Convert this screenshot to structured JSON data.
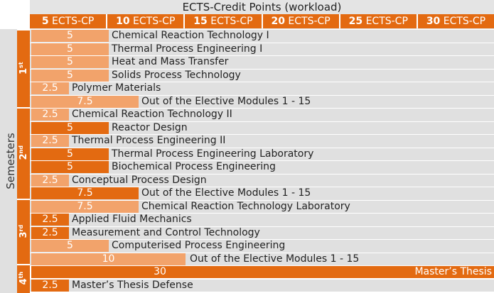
{
  "header": {
    "title": "ECTS-Credit Points (workload)",
    "columns": [
      {
        "num": "5",
        "unit": " ECTS-CP"
      },
      {
        "num": "10",
        "unit": " ECTS-CP"
      },
      {
        "num": "15",
        "unit": " ECTS-CP"
      },
      {
        "num": "20",
        "unit": " ECTS-CP"
      },
      {
        "num": "25",
        "unit": " ECTS-CP"
      },
      {
        "num": "30",
        "unit": " ECTS-CP"
      }
    ]
  },
  "axis_label": "Semesters",
  "semesters": [
    {
      "label": "1",
      "sup": "st"
    },
    {
      "label": "2",
      "sup": "nd"
    },
    {
      "label": "3",
      "sup": "rd"
    },
    {
      "label": "4",
      "sup": "th"
    }
  ],
  "modules": [
    {
      "cp": "5",
      "name": "Chemical Reaction Technology I"
    },
    {
      "cp": "5",
      "name": "Thermal Process Engineering I"
    },
    {
      "cp": "5",
      "name": "Heat and Mass Transfer"
    },
    {
      "cp": "5",
      "name": "Solids Process Technology"
    },
    {
      "cp": "2.5",
      "name": "Polymer Materials"
    },
    {
      "cp": "7.5",
      "name": "Out of the Elective Modules 1 - 15"
    },
    {
      "cp": "2.5",
      "name": "Chemical Reaction Technology II"
    },
    {
      "cp": "5",
      "name": "Reactor Design"
    },
    {
      "cp": "2.5",
      "name": "Thermal Process Engineering II"
    },
    {
      "cp": "5",
      "name": "Thermal Process Engineering Laboratory"
    },
    {
      "cp": "5",
      "name": "Biochemical Process Engineering"
    },
    {
      "cp": "2.5",
      "name": "Conceptual Process Design"
    },
    {
      "cp": "7.5",
      "name": "Out of the Elective Modules 1 - 15"
    },
    {
      "cp": "7.5",
      "name": "Chemical Reaction Technology Laboratory"
    },
    {
      "cp": "2.5",
      "name": "Applied Fluid Mechanics"
    },
    {
      "cp": "2.5",
      "name": "Measurement and Control Technology"
    },
    {
      "cp": "5",
      "name": "Computerised Process Engineering"
    },
    {
      "cp": "10",
      "name": "Out of the Elective Modules 1 - 15"
    },
    {
      "cp": "30",
      "name": "Master’s Thesis"
    },
    {
      "cp": "2.5",
      "name": "Master’s Thesis Defense"
    }
  ],
  "colors": {
    "accent": "#e36a11",
    "light": "#f2a36b",
    "grey": "#d0d0d0",
    "background": "#e0e0e0"
  }
}
